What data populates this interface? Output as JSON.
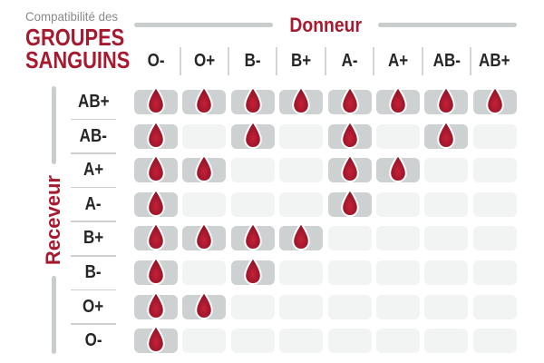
{
  "title": {
    "eyebrow": "Compatibilité des",
    "line1": "GROUPES",
    "line2": "SANGUINS"
  },
  "icons": {
    "compatible_marker": "blood-drop-icon"
  },
  "colors": {
    "accent_red": "#a6192e",
    "drop_center": "#c52139",
    "drop_edge": "#8e1124",
    "cell_filled": "#cdd1d1",
    "cell_empty": "#f2f3f3",
    "rail_line": "#c9cdcd",
    "separator": "#cfcfcf",
    "header_text": "#262626",
    "eyebrow_text": "#8a8a8a"
  },
  "chart_data": {
    "type": "heatmap",
    "title": "Compatibilité des GROUPES SANGUINS",
    "x_axis_label": "Donneur",
    "y_axis_label": "Receveur",
    "x_categories": [
      "O-",
      "O+",
      "B-",
      "B+",
      "A-",
      "A+",
      "AB-",
      "AB+"
    ],
    "y_categories": [
      "AB+",
      "AB-",
      "A+",
      "A-",
      "B+",
      "B-",
      "O+",
      "O-"
    ],
    "values": [
      [
        1,
        1,
        1,
        1,
        1,
        1,
        1,
        1
      ],
      [
        1,
        0,
        1,
        0,
        1,
        0,
        1,
        0
      ],
      [
        1,
        1,
        0,
        0,
        1,
        1,
        0,
        0
      ],
      [
        1,
        0,
        0,
        0,
        1,
        0,
        0,
        0
      ],
      [
        1,
        1,
        1,
        1,
        0,
        0,
        0,
        0
      ],
      [
        1,
        0,
        1,
        0,
        0,
        0,
        0,
        0
      ],
      [
        1,
        1,
        0,
        0,
        0,
        0,
        0,
        0
      ],
      [
        1,
        0,
        0,
        0,
        0,
        0,
        0,
        0
      ]
    ],
    "value_meaning": {
      "1": "compatible — blood drop shown on dark gray cell",
      "0": "incompatible — empty light gray cell"
    },
    "legend_position": "none",
    "grid": "off"
  }
}
